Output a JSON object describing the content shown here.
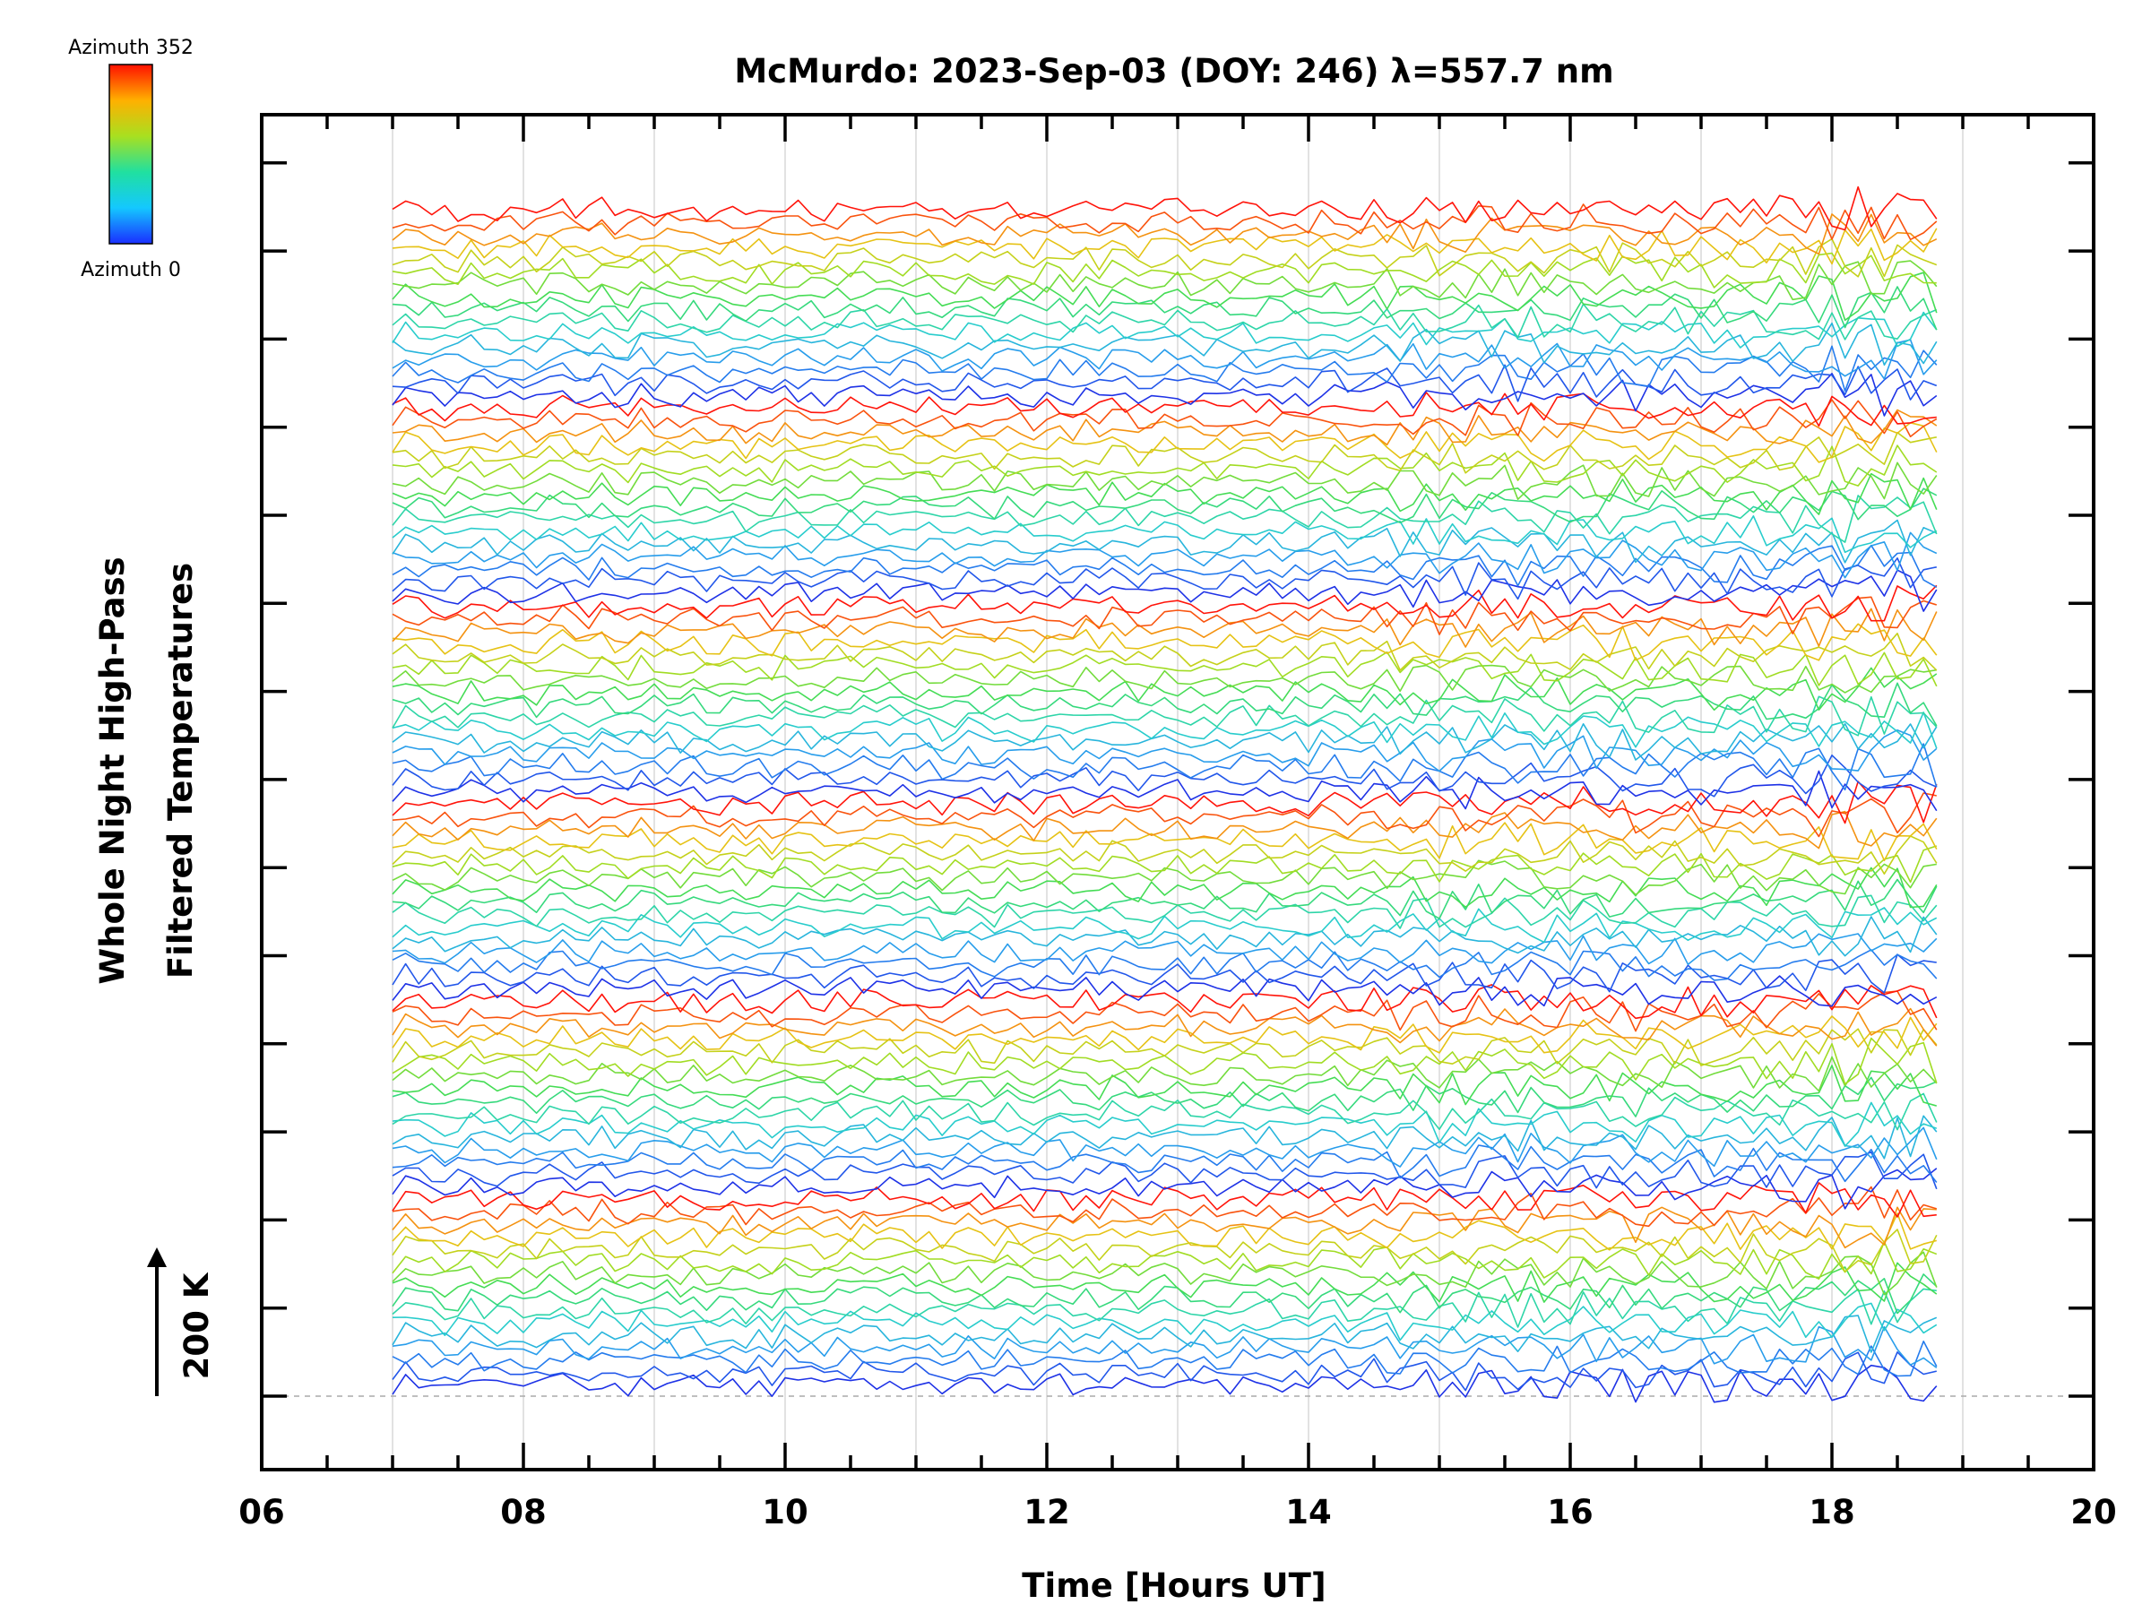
{
  "chart_data": {
    "type": "line",
    "title": "McMurdo: 2023-Sep-03 (DOY: 246) λ=557.7 nm",
    "xlabel": "Time [Hours UT]",
    "ylabel_line1": "Whole Night High-Pass",
    "ylabel_line2": "Filtered Temperatures",
    "xlim": [
      6,
      20
    ],
    "x_ticks": [
      "06",
      "08",
      "10",
      "12",
      "14",
      "16",
      "18",
      "20"
    ],
    "x_tick_values": [
      6,
      8,
      10,
      12,
      14,
      16,
      18,
      20
    ],
    "data_time_range": [
      7.0,
      18.8
    ],
    "series_count": 96,
    "offset_scale_label": "200 K",
    "colorbar": {
      "top_label": "Azimuth 352",
      "bottom_label": "Azimuth 0",
      "min": 0,
      "max": 352
    },
    "grid": "vertical",
    "colors": {
      "axis": "#000000",
      "grid": "#d8d8d8",
      "baseline": "#aaaaaa"
    }
  }
}
